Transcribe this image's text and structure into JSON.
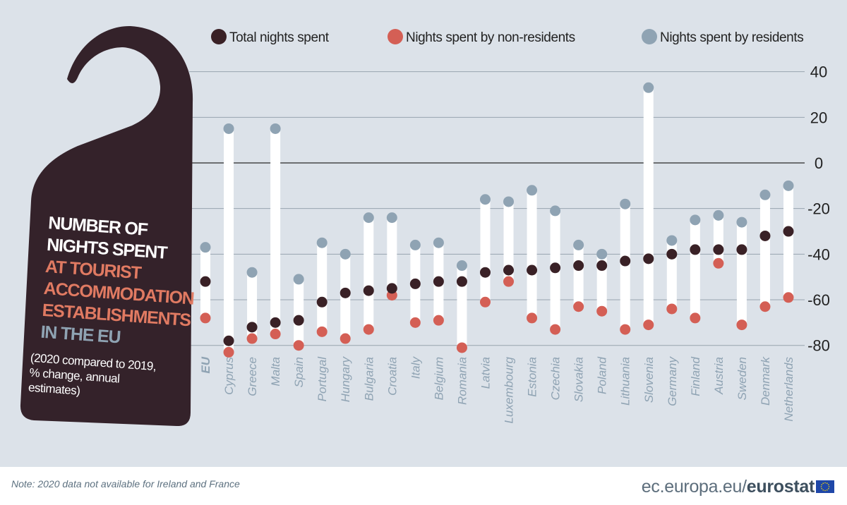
{
  "chart_data": {
    "type": "dot-range",
    "ylim": [
      -80,
      40
    ],
    "yticks": [
      40,
      20,
      0,
      -20,
      -40,
      -60,
      -80
    ],
    "grid": true,
    "legend_placement": "top",
    "title_lines": [
      {
        "text": "NUMBER OF",
        "color": "#ffffff"
      },
      {
        "text": "NIGHTS SPENT",
        "color": "#ffffff"
      },
      {
        "text": "AT TOURIST",
        "color": "#e07a62"
      },
      {
        "text": "ACCOMMODATION",
        "color": "#e07a62"
      },
      {
        "text": "ESTABLISHMENTS",
        "color": "#e07a62"
      },
      {
        "text": "IN THE EU",
        "color": "#8fa3b3"
      }
    ],
    "subtitle_lines": [
      "(2020 compared to 2019,",
      "% change, annual",
      "estimates)"
    ],
    "categories": [
      "EU",
      "Cyprus",
      "Greece",
      "Malta",
      "Spain",
      "Portugal",
      "Hungary",
      "Bulgaria",
      "Croatia",
      "Italy",
      "Belgium",
      "Romania",
      "Latvia",
      "Luxembourg",
      "Estonia",
      "Czechia",
      "Slovakia",
      "Poland",
      "Lithuania",
      "Slovenia",
      "Germany",
      "Finland",
      "Austria",
      "Sweden",
      "Denmark",
      "Netherlands"
    ],
    "series": [
      {
        "name": "Total nights spent",
        "color": "#3a2126",
        "values": [
          -52,
          -78,
          -72,
          -70,
          -69,
          -61,
          -57,
          -56,
          -55,
          -53,
          -52,
          -52,
          -48,
          -47,
          -47,
          -46,
          -45,
          -45,
          -43,
          -42,
          -40,
          -38,
          -38,
          -38,
          -32,
          -30
        ]
      },
      {
        "name": "Nights spent by non-residents",
        "color": "#d45f55",
        "values": [
          -68,
          -83,
          -77,
          -75,
          -80,
          -74,
          -77,
          -73,
          -58,
          -70,
          -69,
          -81,
          -61,
          -52,
          -68,
          -73,
          -63,
          -65,
          -73,
          -71,
          -64,
          -68,
          -44,
          -71,
          -63,
          -59
        ]
      },
      {
        "name": "Nights spent by residents",
        "color": "#8fa3b3",
        "values": [
          -37,
          15,
          -48,
          15,
          -51,
          -35,
          -40,
          -24,
          -24,
          -36,
          -35,
          -45,
          -16,
          -17,
          -12,
          -21,
          -36,
          -40,
          -18,
          33,
          -34,
          -25,
          -23,
          -26,
          -14,
          -10
        ]
      }
    ],
    "colors": {
      "background": "#dce2e9",
      "tag": "#34222a",
      "range_bar": "#ffffff",
      "category_label": "#8fa3b3"
    }
  },
  "footer": {
    "note": "Note: 2020 data not available for Ireland and France",
    "brand_plain": "ec.europa.eu/",
    "brand_bold": "eurostat"
  }
}
